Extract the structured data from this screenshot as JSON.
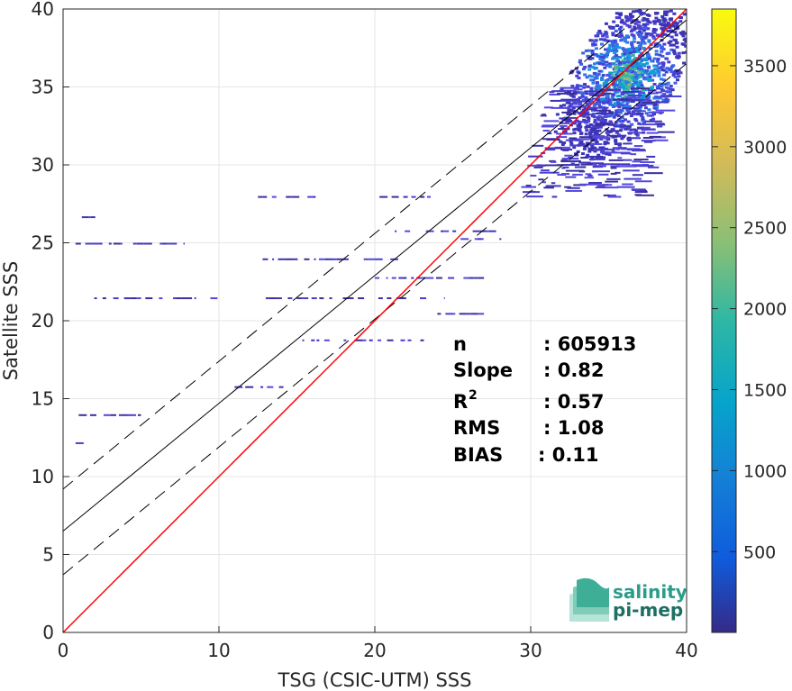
{
  "chart_data": {
    "type": "heatmap",
    "xlabel": "TSG (CSIC-UTM) SSS",
    "ylabel": "Satellite SSS",
    "xlim": [
      0,
      40
    ],
    "ylim": [
      0,
      40
    ],
    "x_ticks": [
      "0",
      "10",
      "20",
      "30",
      "40"
    ],
    "y_ticks": [
      "0",
      "5",
      "10",
      "15",
      "20",
      "25",
      "30",
      "35",
      "40"
    ],
    "grid": true,
    "colorbar": {
      "range": [
        1,
        3850
      ],
      "ticks": [
        "500",
        "1000",
        "1500",
        "2000",
        "2500",
        "3000",
        "3500"
      ],
      "colormap": "parula"
    },
    "lines": {
      "identity": {
        "slope": 1,
        "intercept": 0,
        "color": "#ff0000"
      },
      "fit": {
        "slope": 0.82,
        "intercept": 6.5,
        "color": "#000000"
      },
      "fit_upper": {
        "slope": 0.82,
        "intercept": 9.2,
        "style": "dashed"
      },
      "fit_lower": {
        "slope": 0.82,
        "intercept": 3.7,
        "style": "dashed"
      }
    },
    "dense_cluster": {
      "center": [
        36,
        35.8
      ],
      "peak_count": 3850
    },
    "sparse_segments": [
      {
        "y": 28.0,
        "x": [
          12.5,
          16.2
        ]
      },
      {
        "y": 28.0,
        "x": [
          19.4,
          24.0
        ]
      },
      {
        "y": 26.7,
        "x": [
          1.2,
          2.3
        ]
      },
      {
        "y": 25.0,
        "x": [
          0.8,
          7.8
        ]
      },
      {
        "y": 24.0,
        "x": [
          12.8,
          21.5
        ]
      },
      {
        "y": 21.5,
        "x": [
          2.0,
          11.0
        ]
      },
      {
        "y": 21.5,
        "x": [
          13.0,
          24.5
        ]
      },
      {
        "y": 18.8,
        "x": [
          14.6,
          17.1
        ]
      },
      {
        "y": 18.8,
        "x": [
          18.0,
          23.5
        ]
      },
      {
        "y": 15.8,
        "x": [
          11.0,
          14.8
        ]
      },
      {
        "y": 14.0,
        "x": [
          1.0,
          5.0
        ]
      },
      {
        "y": 12.2,
        "x": [
          0.8,
          1.5
        ]
      },
      {
        "y": 25.8,
        "x": [
          20.5,
          28.0
        ]
      },
      {
        "y": 22.8,
        "x": [
          20.0,
          27.0
        ]
      },
      {
        "y": 20.5,
        "x": [
          23.5,
          27.0
        ]
      },
      {
        "y": 25.3,
        "x": [
          25.5,
          28.5
        ]
      }
    ],
    "stats": [
      {
        "label": "n",
        "value": ": 605913"
      },
      {
        "label": "Slope",
        "value": ": 0.82"
      },
      {
        "label": "R",
        "sup": "2",
        "value": ": 0.57"
      },
      {
        "label": "RMS",
        "value": ": 1.08"
      },
      {
        "label": "BIAS",
        "value": ": 0.11"
      }
    ]
  },
  "logo": {
    "line1": "salinity",
    "line2": "pi-mep",
    "primary_color": "#2a9c8a"
  }
}
